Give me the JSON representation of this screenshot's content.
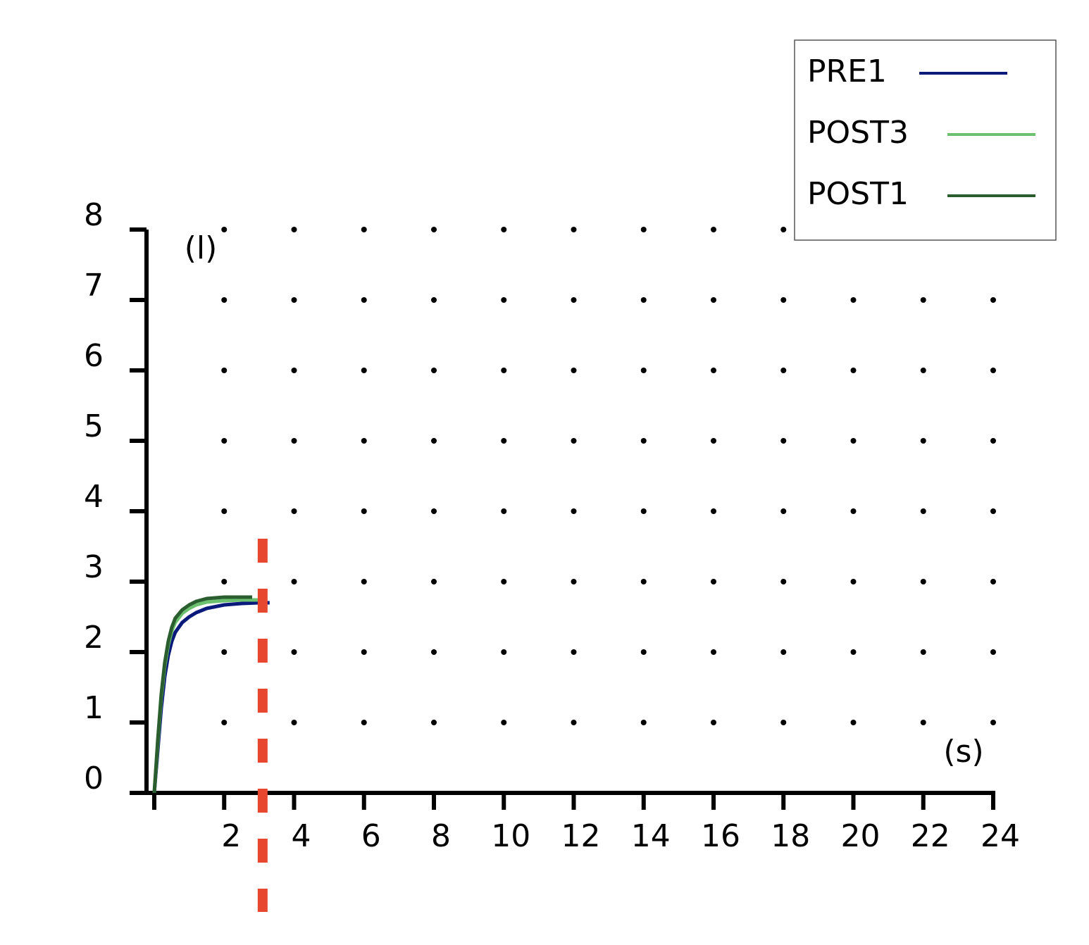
{
  "chart_data": {
    "type": "line",
    "y_unit_label": "(l)",
    "x_unit_label": "(s)",
    "xlim": [
      0,
      24
    ],
    "ylim": [
      0,
      8
    ],
    "xticks": [
      2,
      4,
      6,
      8,
      10,
      12,
      14,
      16,
      18,
      20,
      22,
      24
    ],
    "yticks": [
      0,
      1,
      2,
      3,
      4,
      5,
      6,
      7,
      8
    ],
    "grid": "dotted",
    "legend": "top-right",
    "vline": {
      "x": 3.1,
      "color": "#e8472f"
    },
    "series": [
      {
        "name": "PRE1",
        "color": "#0a1a7a",
        "x": [
          0,
          0.1,
          0.2,
          0.3,
          0.4,
          0.5,
          0.6,
          0.8,
          1.0,
          1.2,
          1.5,
          2.0,
          2.5,
          3.0,
          3.3
        ],
        "values": [
          0,
          0.6,
          1.2,
          1.65,
          1.95,
          2.15,
          2.28,
          2.42,
          2.5,
          2.56,
          2.62,
          2.67,
          2.69,
          2.7,
          2.7
        ]
      },
      {
        "name": "POST3",
        "color": "#6cc070",
        "x": [
          0,
          0.1,
          0.2,
          0.3,
          0.4,
          0.5,
          0.6,
          0.8,
          1.0,
          1.2,
          1.5,
          2.0,
          2.5,
          3.0
        ],
        "values": [
          0,
          0.7,
          1.35,
          1.8,
          2.1,
          2.3,
          2.42,
          2.55,
          2.62,
          2.67,
          2.71,
          2.73,
          2.74,
          2.74
        ]
      },
      {
        "name": "POST1",
        "color": "#2a5e2e",
        "x": [
          0,
          0.1,
          0.2,
          0.3,
          0.4,
          0.5,
          0.6,
          0.8,
          1.0,
          1.2,
          1.5,
          2.0,
          2.8
        ],
        "values": [
          0,
          0.75,
          1.4,
          1.85,
          2.15,
          2.35,
          2.48,
          2.6,
          2.67,
          2.72,
          2.76,
          2.78,
          2.78
        ]
      }
    ]
  }
}
